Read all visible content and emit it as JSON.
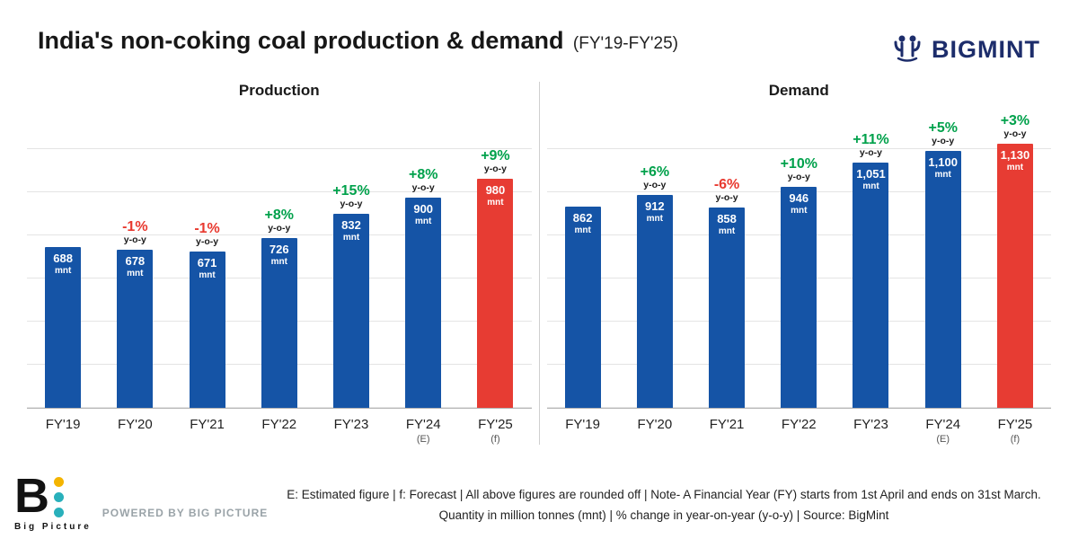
{
  "header": {
    "title": "India's non-coking coal production & demand",
    "subtitle": "(FY'19-FY'25)"
  },
  "brand": {
    "name": "BIGMINT"
  },
  "colors": {
    "bar": "#1554a6",
    "bar_highlight": "#e73c33",
    "positive": "#00a14b",
    "negative": "#e8392f",
    "brand_navy": "#1d2d6b"
  },
  "chart_data": [
    {
      "type": "bar",
      "title": "Production",
      "unit": "mnt",
      "pct_note": "y-o-y",
      "categories": [
        "FY'19",
        "FY'20",
        "FY'21",
        "FY'22",
        "FY'23",
        "FY'24",
        "FY'25"
      ],
      "sublabels": [
        "",
        "",
        "",
        "",
        "",
        "(E)",
        "(f)"
      ],
      "values": [
        688,
        678,
        671,
        726,
        832,
        900,
        980
      ],
      "value_labels": [
        "688",
        "678",
        "671",
        "726",
        "832",
        "900",
        "980"
      ],
      "pct_change": [
        "",
        "-1%",
        "-1%",
        "+8%",
        "+15%",
        "+8%",
        "+9%"
      ],
      "highlight_index": 6,
      "ylim": [
        0,
        1200
      ],
      "grid": true,
      "legend": "none"
    },
    {
      "type": "bar",
      "title": "Demand",
      "unit": "mnt",
      "pct_note": "y-o-y",
      "categories": [
        "FY'19",
        "FY'20",
        "FY'21",
        "FY'22",
        "FY'23",
        "FY'24",
        "FY'25"
      ],
      "sublabels": [
        "",
        "",
        "",
        "",
        "",
        "(E)",
        "(f)"
      ],
      "values": [
        862,
        912,
        858,
        946,
        1051,
        1100,
        1130
      ],
      "value_labels": [
        "862",
        "912",
        "858",
        "946",
        "1,051",
        "1,100",
        "1,130"
      ],
      "pct_change": [
        "",
        "+6%",
        "-6%",
        "+10%",
        "+11%",
        "+5%",
        "+3%"
      ],
      "highlight_index": 6,
      "ylim": [
        0,
        1200
      ],
      "grid": true,
      "legend": "none"
    }
  ],
  "footer": {
    "line1": "E: Estimated figure  |  f: Forecast  |  All above figures are rounded off   |  Note- A Financial Year (FY) starts from 1st April and ends on 31st March.",
    "line2": "Quantity in million tonnes (mnt)  |  % change in year-on-year (y-o-y)  |   Source: BigMint",
    "powered_by": "POWERED BY BIG PICTURE",
    "logo_text": "Big Picture"
  }
}
